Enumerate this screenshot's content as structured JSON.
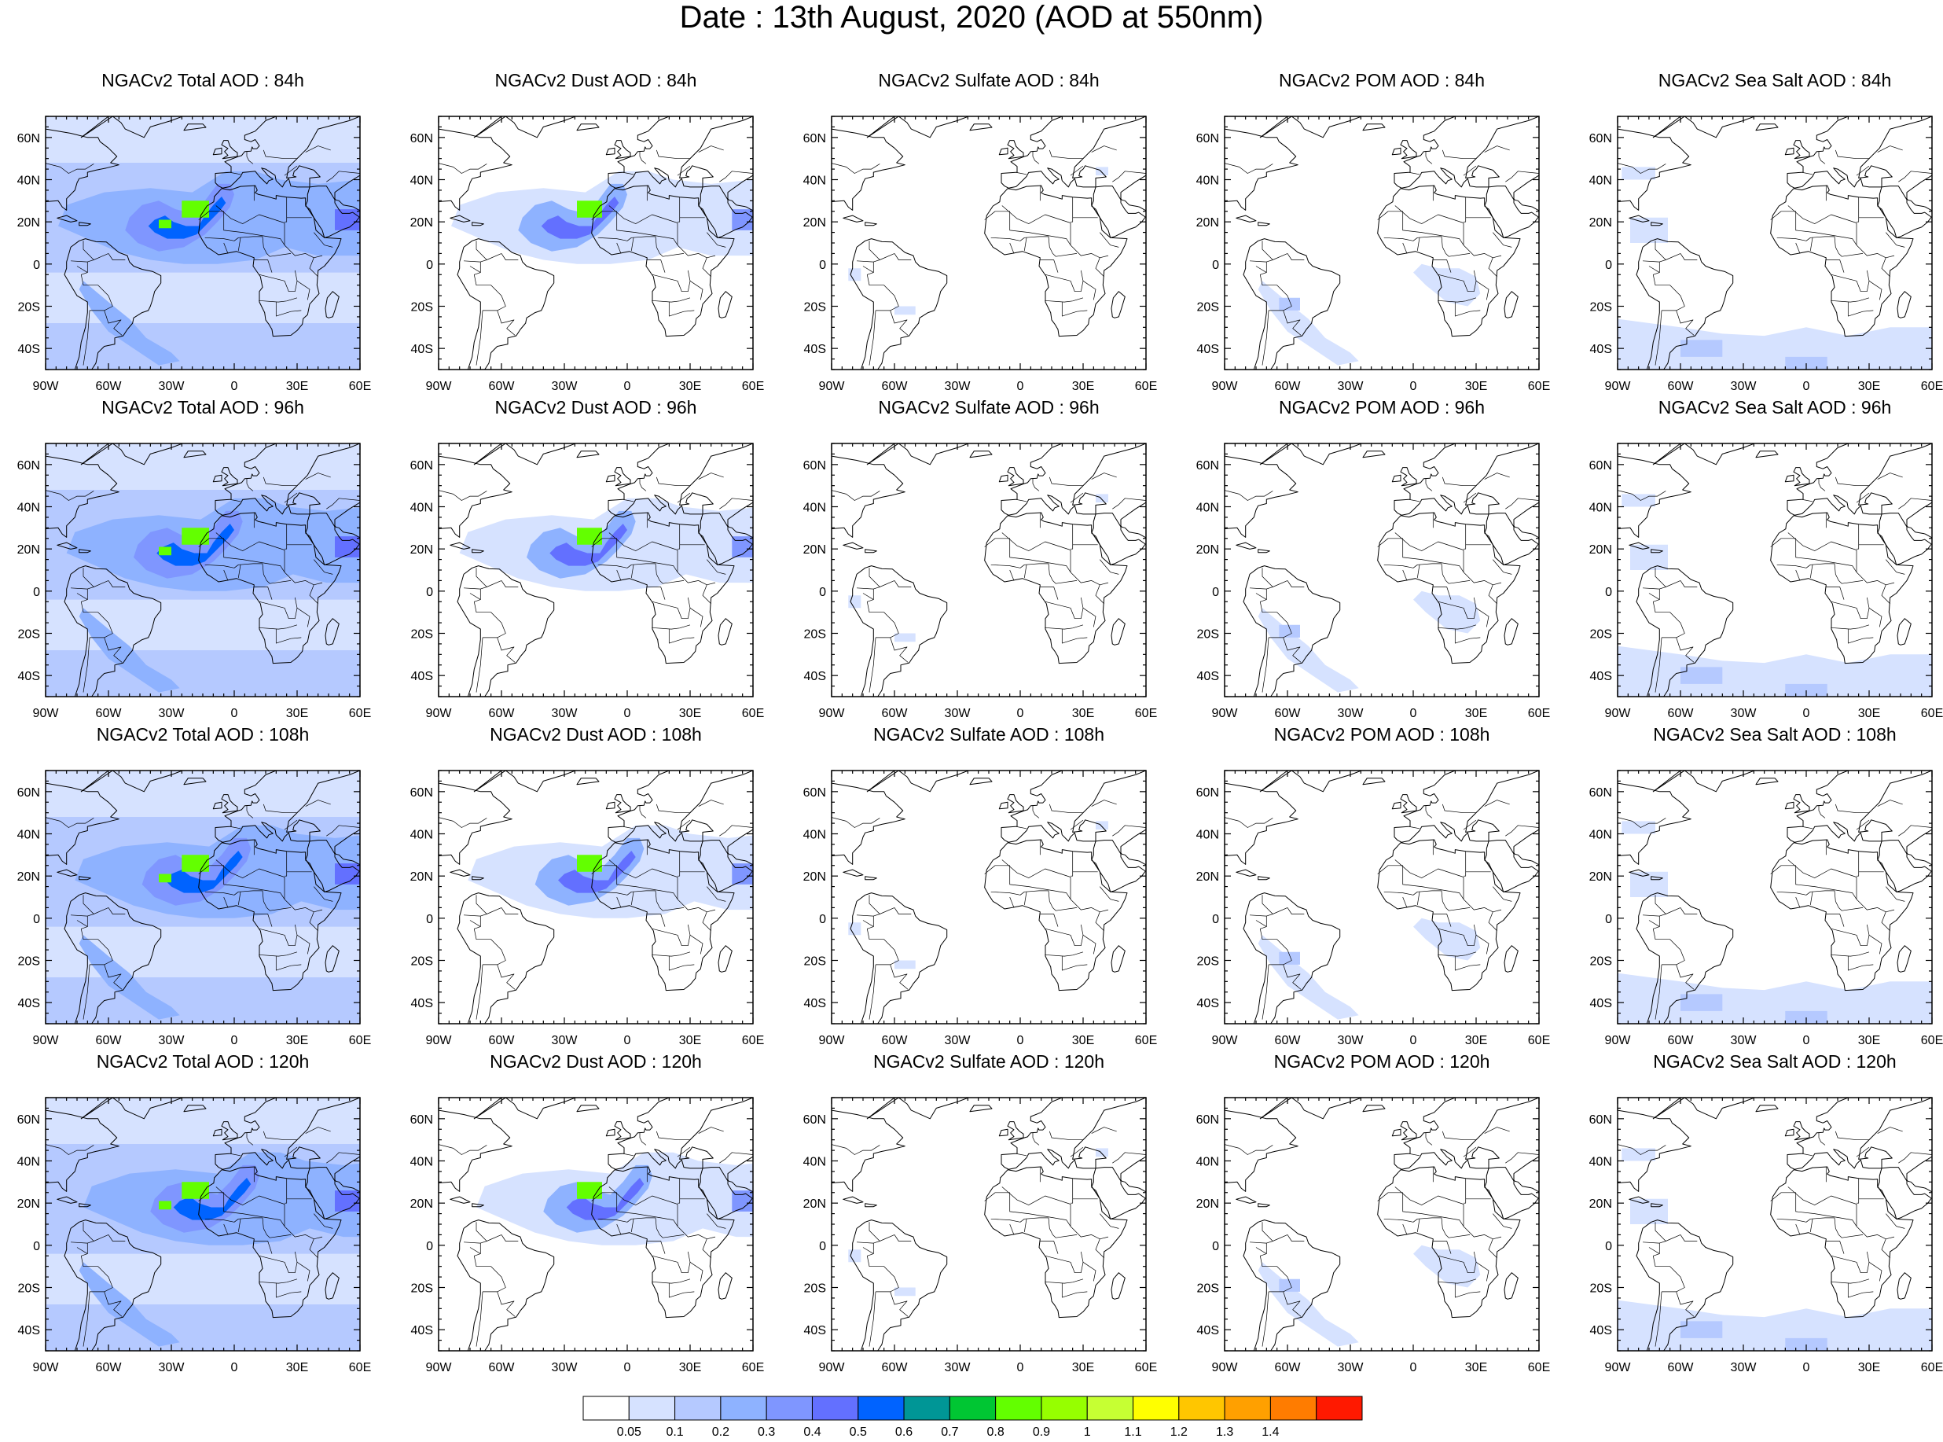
{
  "title": "Date : 13th August, 2020 (AOD at 550nm)",
  "panels": [
    [
      "NGACv2 Total AOD : 84h",
      "NGACv2 Dust AOD : 84h",
      "NGACv2 Sulfate AOD : 84h",
      "NGACv2 POM AOD : 84h",
      "NGACv2 Sea Salt AOD : 84h"
    ],
    [
      "NGACv2 Total AOD : 96h",
      "NGACv2 Dust AOD : 96h",
      "NGACv2 Sulfate AOD : 96h",
      "NGACv2 POM AOD : 96h",
      "NGACv2 Sea Salt AOD : 96h"
    ],
    [
      "NGACv2 Total AOD : 108h",
      "NGACv2 Dust AOD : 108h",
      "NGACv2 Sulfate AOD : 108h",
      "NGACv2 POM AOD : 108h",
      "NGACv2 Sea Salt AOD : 108h"
    ],
    [
      "NGACv2 Total AOD : 120h",
      "NGACv2 Dust AOD : 120h",
      "NGACv2 Sulfate AOD : 120h",
      "NGACv2 POM AOD : 120h",
      "NGACv2 Sea Salt  AOD : 120h"
    ]
  ],
  "lon_labels": [
    "90W",
    "60W",
    "30W",
    "0",
    "30E",
    "60E"
  ],
  "lat_labels": [
    "60N",
    "40N",
    "20N",
    "0",
    "20S",
    "40S"
  ],
  "colorbar": {
    "labels": [
      "0.05",
      "0.1",
      "0.2",
      "0.3",
      "0.4",
      "0.5",
      "0.6",
      "0.7",
      "0.8",
      "0.9",
      "1",
      "1.1",
      "1.2",
      "1.3",
      "1.4"
    ],
    "colors": [
      "#ffffff",
      "#d6e2ff",
      "#b5c9ff",
      "#8eb2ff",
      "#7f96ff",
      "#6370ff",
      "#0063ff",
      "#009696",
      "#00c633",
      "#63ff00",
      "#96ff00",
      "#c6ff33",
      "#ffff00",
      "#ffc600",
      "#ffa000",
      "#ff7c00",
      "#ff1900"
    ]
  }
}
